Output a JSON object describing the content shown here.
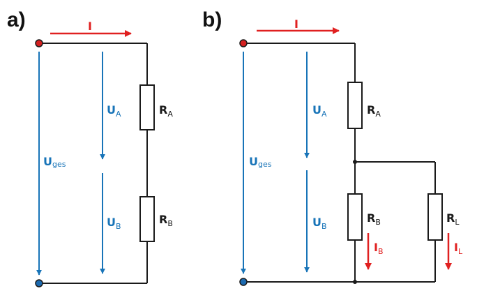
{
  "panels": {
    "a": {
      "label": "a)",
      "current": "I",
      "u_total": {
        "main": "U",
        "sub": "ges"
      },
      "u_a": {
        "main": "U",
        "sub": "A"
      },
      "u_b": {
        "main": "U",
        "sub": "B"
      },
      "r_a": {
        "main": "R",
        "sub": "A"
      },
      "r_b": {
        "main": "R",
        "sub": "B"
      }
    },
    "b": {
      "label": "b)",
      "current": "I",
      "u_total": {
        "main": "U",
        "sub": "ges"
      },
      "u_a": {
        "main": "U",
        "sub": "A"
      },
      "u_b": {
        "main": "U",
        "sub": "B"
      },
      "r_a": {
        "main": "R",
        "sub": "A"
      },
      "r_b": {
        "main": "R",
        "sub": "B"
      },
      "r_l": {
        "main": "R",
        "sub": "L"
      },
      "i_b": {
        "main": "I",
        "sub": "B"
      },
      "i_l": {
        "main": "I",
        "sub": "L"
      }
    }
  },
  "colors": {
    "voltage": "#1874b8",
    "current": "#e02020",
    "wire": "#1a1a1a",
    "terminal_top": "#d42020",
    "terminal_bottom": "#1c6ab0"
  }
}
